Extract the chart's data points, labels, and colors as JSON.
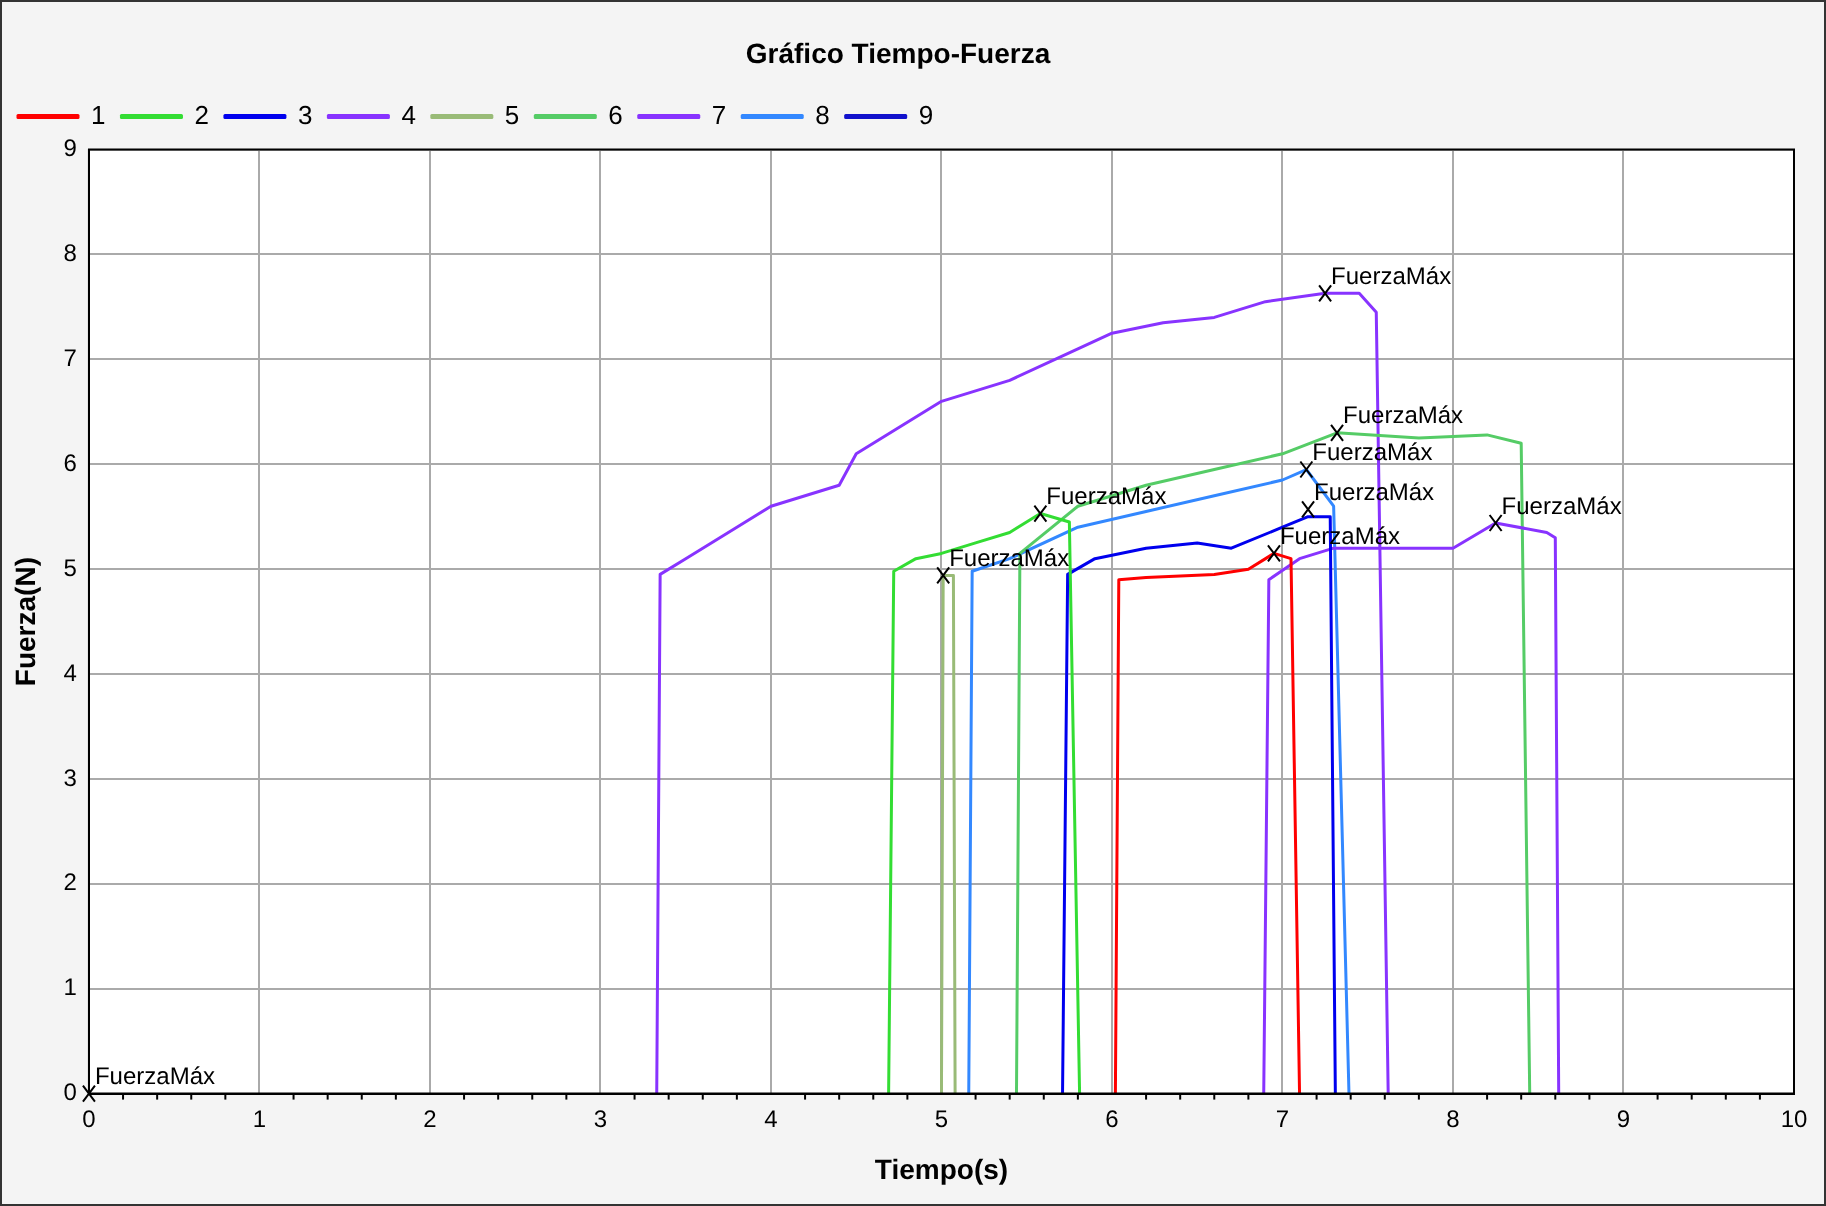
{
  "chart_data": {
    "type": "line",
    "title": "Gráfico Tiempo-Fuerza",
    "xlabel": "Tiempo(s)",
    "ylabel": "Fuerza(N)",
    "xlim": [
      0,
      10
    ],
    "xticks": [
      0,
      1,
      2,
      3,
      4,
      5,
      6,
      7,
      8,
      9,
      10
    ],
    "ylim": [
      0,
      9
    ],
    "yticks": [
      0,
      1,
      2,
      3,
      4,
      5,
      6,
      7,
      8,
      9
    ],
    "grid": true,
    "legend": "top left",
    "marker": "none",
    "line_style": "solid",
    "series": [
      {
        "name": "1",
        "color": "#ff0000",
        "x": [
          6.02,
          6.04,
          6.2,
          6.6,
          6.8,
          6.95,
          7.05,
          7.1
        ],
        "values": [
          0,
          4.9,
          4.92,
          4.95,
          5.0,
          5.15,
          5.1,
          0
        ]
      },
      {
        "name": "2",
        "color": "#33dd33",
        "x": [
          4.69,
          4.72,
          4.85,
          5.0,
          5.2,
          5.4,
          5.58,
          5.75,
          5.81
        ],
        "values": [
          0,
          4.98,
          5.1,
          5.15,
          5.25,
          5.35,
          5.53,
          5.45,
          0
        ]
      },
      {
        "name": "3",
        "color": "#0000ee",
        "x": [
          5.71,
          5.74,
          5.9,
          6.2,
          6.5,
          6.7,
          7.0,
          7.15,
          7.28,
          7.31
        ],
        "values": [
          0,
          4.95,
          5.1,
          5.2,
          5.25,
          5.2,
          5.4,
          5.5,
          5.5,
          0
        ]
      },
      {
        "name": "4",
        "color": "#8833ff",
        "x": [
          6.89,
          6.92,
          7.1,
          7.3,
          7.6,
          8.0,
          8.25,
          8.55,
          8.6,
          8.62
        ],
        "values": [
          0,
          4.9,
          5.1,
          5.2,
          5.2,
          5.2,
          5.44,
          5.35,
          5.3,
          0
        ]
      },
      {
        "name": "5",
        "color": "#99bb77",
        "x": [
          5.0,
          5.01,
          5.07,
          5.08
        ],
        "values": [
          0,
          4.94,
          4.94,
          0
        ]
      },
      {
        "name": "6",
        "color": "#55cc66",
        "x": [
          5.44,
          5.46,
          5.8,
          6.2,
          6.6,
          7.0,
          7.32,
          7.8,
          8.2,
          8.4,
          8.45
        ],
        "values": [
          0,
          5.15,
          5.6,
          5.8,
          5.95,
          6.1,
          6.3,
          6.25,
          6.28,
          6.2,
          0
        ]
      },
      {
        "name": "7",
        "color": "#8833ff",
        "x": [
          3.33,
          3.35,
          3.5,
          3.8,
          4.0,
          4.4,
          4.5,
          4.8,
          5.0,
          5.4,
          5.8,
          6.0,
          6.3,
          6.6,
          6.9,
          7.25,
          7.45,
          7.55,
          7.62
        ],
        "values": [
          0,
          4.95,
          5.1,
          5.4,
          5.6,
          5.8,
          6.1,
          6.4,
          6.6,
          6.8,
          7.1,
          7.25,
          7.35,
          7.4,
          7.55,
          7.63,
          7.63,
          7.45,
          0
        ]
      },
      {
        "name": "8",
        "color": "#3388ff",
        "x": [
          5.16,
          5.18,
          5.4,
          5.8,
          6.2,
          6.6,
          7.0,
          7.14,
          7.3,
          7.39
        ],
        "values": [
          0,
          4.98,
          5.1,
          5.4,
          5.55,
          5.7,
          5.85,
          5.95,
          5.6,
          0
        ]
      },
      {
        "name": "9",
        "color": "#1111cc",
        "values": [
          null
        ]
      }
    ],
    "annotations": [
      {
        "text": "FuerzaMáx",
        "x": 6.95,
        "y": 5.15
      },
      {
        "text": "FuerzaMáx",
        "x": 5.58,
        "y": 5.53
      },
      {
        "text": "FuerzaMáx",
        "x": 7.15,
        "y": 5.57
      },
      {
        "text": "FuerzaMáx",
        "x": 8.25,
        "y": 5.44
      },
      {
        "text": "FuerzaMáx",
        "x": 5.01,
        "y": 4.94
      },
      {
        "text": "FuerzaMáx",
        "x": 7.32,
        "y": 6.3
      },
      {
        "text": "FuerzaMáx",
        "x": 7.25,
        "y": 7.63
      },
      {
        "text": "FuerzaMáx",
        "x": 7.14,
        "y": 5.95
      },
      "FuerzaMáx"
    ]
  }
}
